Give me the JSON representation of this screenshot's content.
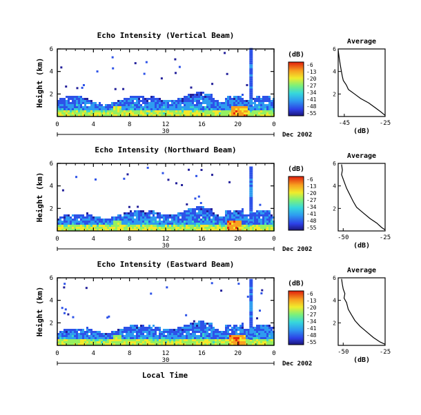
{
  "figure": {
    "xlabel": "Local Time",
    "date_label": "Dec 2002",
    "day_label": "30"
  },
  "colorbar": {
    "unit": "(dB)",
    "ticks": [
      "-6",
      "-13",
      "-20",
      "-27",
      "-34",
      "-41",
      "-48",
      "-55"
    ],
    "colors": [
      "#e82d0e",
      "#f8a020",
      "#f4e82a",
      "#96f060",
      "#3cd6c8",
      "#2e9cf0",
      "#2d52e8",
      "#23209a"
    ]
  },
  "chart_data": [
    {
      "type": "heatmap",
      "title": "Echo Intensity (Vertical Beam)",
      "ylabel": "Height (km)",
      "xlim": [
        0,
        24
      ],
      "ylim": [
        0,
        6
      ],
      "xticks": [
        "0",
        "4",
        "8",
        "12",
        "16",
        "20",
        "0"
      ],
      "yticks": [
        "2",
        "4",
        "6"
      ],
      "clim": [
        -55,
        -6
      ],
      "storm_hour": 20,
      "cell_hour": 21.5,
      "cell_top_km": 6.0,
      "profile": {
        "title": "Average",
        "xlabel": "(dB)",
        "xlim": [
          -48,
          -25
        ],
        "xticks": [
          "-45",
          "-25"
        ],
        "yticks": [
          "2",
          "4",
          "6"
        ],
        "x": [
          -48,
          -47.5,
          -47,
          -46.5,
          -46,
          -45.5,
          -44,
          -43,
          -40,
          -37,
          -33,
          -30,
          -27,
          -25
        ],
        "y": [
          5.9,
          5.2,
          4.6,
          4.1,
          3.6,
          3.2,
          2.8,
          2.4,
          2.0,
          1.6,
          1.2,
          0.8,
          0.4,
          0.1
        ]
      }
    },
    {
      "type": "heatmap",
      "title": "Echo Intensity (Northward Beam)",
      "ylabel": "Height (km)",
      "xlim": [
        0,
        24
      ],
      "ylim": [
        0,
        6
      ],
      "xticks": [
        "0",
        "4",
        "8",
        "12",
        "16",
        "20",
        "0"
      ],
      "yticks": [
        "2",
        "4",
        "6"
      ],
      "clim": [
        -55,
        -6
      ],
      "storm_hour": 19.5,
      "cell_hour": 21.5,
      "cell_top_km": 5.6,
      "profile": {
        "title": "Average",
        "xlabel": "(dB)",
        "xlim": [
          -53,
          -25
        ],
        "xticks": [
          "-50",
          "-25"
        ],
        "yticks": [
          "2",
          "4",
          "6"
        ],
        "x": [
          -51,
          -50.5,
          -51,
          -50,
          -49,
          -48,
          -46,
          -44,
          -42,
          -38,
          -34,
          -30,
          -27,
          -25
        ],
        "y": [
          5.9,
          5.4,
          5.0,
          4.6,
          4.2,
          3.8,
          3.2,
          2.6,
          2.1,
          1.6,
          1.1,
          0.7,
          0.3,
          0.1
        ]
      }
    },
    {
      "type": "heatmap",
      "title": "Echo Intensity (Eastward Beam)",
      "ylabel": "Height (km)",
      "xlim": [
        0,
        24
      ],
      "ylim": [
        0,
        6
      ],
      "xticks": [
        "0",
        "4",
        "8",
        "12",
        "16",
        "20",
        "0"
      ],
      "yticks": [
        "2",
        "4",
        "6"
      ],
      "clim": [
        -55,
        -6
      ],
      "storm_hour": 19.8,
      "cell_hour": 21.5,
      "cell_top_km": 5.8,
      "profile": {
        "title": "Average",
        "xlabel": "(dB)",
        "xlim": [
          -53,
          -25
        ],
        "xticks": [
          "-50",
          "-25"
        ],
        "yticks": [
          "2",
          "4",
          "6"
        ],
        "x": [
          -51,
          -50.5,
          -50,
          -49,
          -49.5,
          -48,
          -47,
          -45,
          -43,
          -40,
          -36,
          -32,
          -28,
          -25
        ],
        "y": [
          5.9,
          5.4,
          5.0,
          4.6,
          4.2,
          3.8,
          3.2,
          2.7,
          2.2,
          1.7,
          1.2,
          0.7,
          0.3,
          0.1
        ]
      }
    }
  ]
}
